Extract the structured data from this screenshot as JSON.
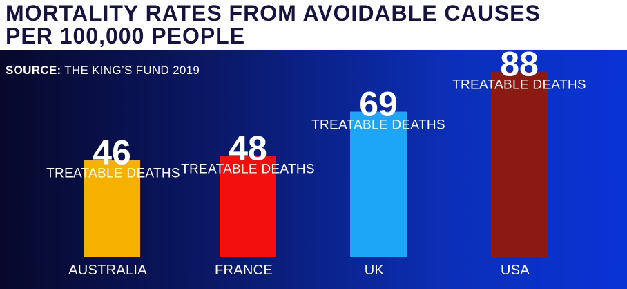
{
  "title_line_1": "MORTALITY RATES FROM AVOIDABLE CAUSES",
  "title_line_2": "PER 100,000 PEOPLE",
  "source_label": "SOURCE:",
  "source_text": "THE KING’S FUND 2019",
  "chart_data": {
    "type": "bar",
    "title": "MORTALITY RATES FROM AVOIDABLE CAUSES PER 100,000 PEOPLE",
    "categories": [
      "AUSTRALIA",
      "FRANCE",
      "UK",
      "USA"
    ],
    "values": [
      46,
      48,
      69,
      88
    ],
    "value_sublabel": "TREATABLE DEATHS",
    "colors": [
      "#f6b100",
      "#f40f0f",
      "#1da6f7",
      "#8c1a12"
    ],
    "ylim": [
      0,
      100
    ],
    "xlabel": "",
    "ylabel": "",
    "grid": false
  }
}
